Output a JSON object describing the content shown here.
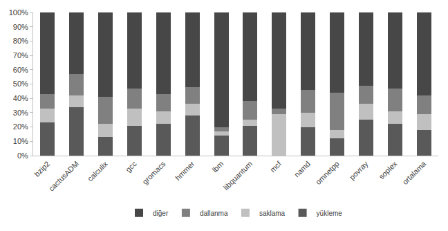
{
  "chart_data": {
    "type": "bar",
    "stacked": true,
    "legend": "bottom",
    "grid": false,
    "categories": [
      "bzip2",
      "cactusADM",
      "calculix",
      "gcc",
      "gromacs",
      "hmmer",
      "lbm",
      "libquantum",
      "mcf",
      "namd",
      "omnetpp",
      "povray",
      "soplex",
      "ortalama"
    ],
    "series": [
      {
        "name": "yükleme",
        "color": "#595959",
        "values": [
          23,
          34,
          13,
          21,
          22,
          28,
          14,
          21,
          0,
          20,
          12,
          25,
          22,
          18
        ]
      },
      {
        "name": "saklama",
        "color": "#c0c0c0",
        "values": [
          10,
          8,
          9,
          12,
          9,
          8,
          3,
          4,
          29,
          10,
          6,
          11,
          9,
          11
        ]
      },
      {
        "name": "dallanma",
        "color": "#808080",
        "values": [
          10,
          15,
          19,
          14,
          12,
          12,
          3,
          13,
          4,
          16,
          26,
          13,
          16,
          13
        ]
      },
      {
        "name": "diğer",
        "color": "#474747",
        "values": [
          57,
          43,
          59,
          53,
          57,
          52,
          80,
          62,
          67,
          54,
          56,
          51,
          53,
          58
        ]
      }
    ],
    "ylim": [
      0,
      100
    ],
    "yticks": [
      {
        "value": 0,
        "label": "0%"
      },
      {
        "value": 10,
        "label": "10%"
      },
      {
        "value": 20,
        "label": "20%"
      },
      {
        "value": 30,
        "label": "30%"
      },
      {
        "value": 40,
        "label": "40%"
      },
      {
        "value": 50,
        "label": "50%"
      },
      {
        "value": 60,
        "label": "60%"
      },
      {
        "value": 70,
        "label": "70%"
      },
      {
        "value": 80,
        "label": "80%"
      },
      {
        "value": 90,
        "label": "90%"
      },
      {
        "value": 100,
        "label": "100%"
      }
    ]
  }
}
